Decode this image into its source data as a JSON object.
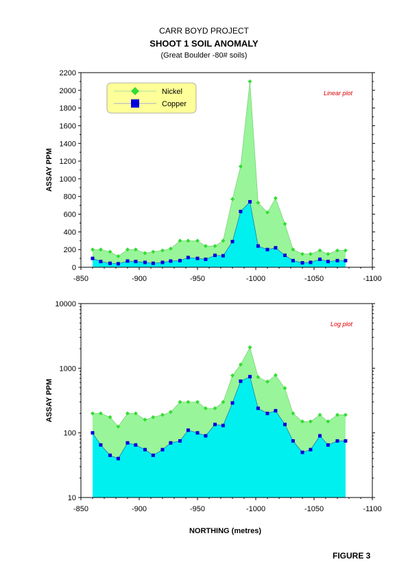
{
  "header": {
    "project": "CARR BOYD PROJECT",
    "title": "SHOOT 1 SOIL ANOMALY",
    "subtitle": "(Great Boulder -80# soils)"
  },
  "figure_label": "FIGURE 3",
  "colors": {
    "nickel_fill": "#99f599",
    "nickel_marker": "#33dd33",
    "copper_fill": "#00f0f0",
    "copper_marker": "#0000dd",
    "annotation": "#dd0000",
    "legend_bg": "#ffff99"
  },
  "chart_data": [
    {
      "type": "area",
      "annotation": "Linear plot",
      "ylabel": "ASSAY PPM",
      "xlabel": "",
      "xlim": [
        -850,
        -1100
      ],
      "xticks": [
        -850,
        -900,
        -950,
        -1000,
        -1050,
        -1100
      ],
      "ylim": [
        0,
        2200
      ],
      "yticks": [
        0,
        200,
        400,
        600,
        800,
        1000,
        1200,
        1400,
        1600,
        1800,
        2000,
        2200
      ],
      "yscale": "linear",
      "legend_position": "top-left",
      "x": [
        -860,
        -867,
        -875,
        -882,
        -890,
        -897,
        -905,
        -912,
        -920,
        -927,
        -935,
        -942,
        -950,
        -957,
        -965,
        -972,
        -980,
        -987,
        -995,
        -1002,
        -1010,
        -1017,
        -1025,
        -1032,
        -1040,
        -1047,
        -1055,
        -1062,
        -1070,
        -1077
      ],
      "series": [
        {
          "name": "Nickel",
          "values": [
            200,
            200,
            175,
            125,
            200,
            200,
            160,
            175,
            190,
            210,
            300,
            300,
            300,
            240,
            240,
            300,
            770,
            1140,
            2100,
            730,
            620,
            780,
            490,
            200,
            150,
            150,
            190,
            150,
            190,
            190
          ]
        },
        {
          "name": "Copper",
          "values": [
            100,
            65,
            45,
            40,
            70,
            65,
            55,
            45,
            55,
            70,
            75,
            110,
            100,
            90,
            135,
            130,
            290,
            630,
            740,
            240,
            200,
            220,
            135,
            75,
            50,
            55,
            90,
            65,
            75,
            75
          ]
        }
      ]
    },
    {
      "type": "area",
      "annotation": "Log plot",
      "ylabel": "ASSAY PPM",
      "xlabel": "NORTHING (metres)",
      "xlim": [
        -850,
        -1100
      ],
      "xticks": [
        -850,
        -900,
        -950,
        -1000,
        -1050,
        -1100
      ],
      "ylim": [
        10,
        10000
      ],
      "yticks": [
        10,
        100,
        1000,
        10000
      ],
      "yscale": "log",
      "x": [
        -860,
        -867,
        -875,
        -882,
        -890,
        -897,
        -905,
        -912,
        -920,
        -927,
        -935,
        -942,
        -950,
        -957,
        -965,
        -972,
        -980,
        -987,
        -995,
        -1002,
        -1010,
        -1017,
        -1025,
        -1032,
        -1040,
        -1047,
        -1055,
        -1062,
        -1070,
        -1077
      ],
      "series": [
        {
          "name": "Nickel",
          "values": [
            200,
            200,
            175,
            125,
            200,
            200,
            160,
            175,
            190,
            210,
            300,
            300,
            300,
            240,
            240,
            300,
            770,
            1140,
            2100,
            730,
            620,
            780,
            490,
            200,
            150,
            150,
            190,
            150,
            190,
            190
          ]
        },
        {
          "name": "Copper",
          "values": [
            100,
            65,
            45,
            40,
            70,
            65,
            55,
            45,
            55,
            70,
            75,
            110,
            100,
            90,
            135,
            130,
            290,
            630,
            740,
            240,
            200,
            220,
            135,
            75,
            50,
            55,
            90,
            65,
            75,
            75
          ]
        }
      ]
    }
  ]
}
